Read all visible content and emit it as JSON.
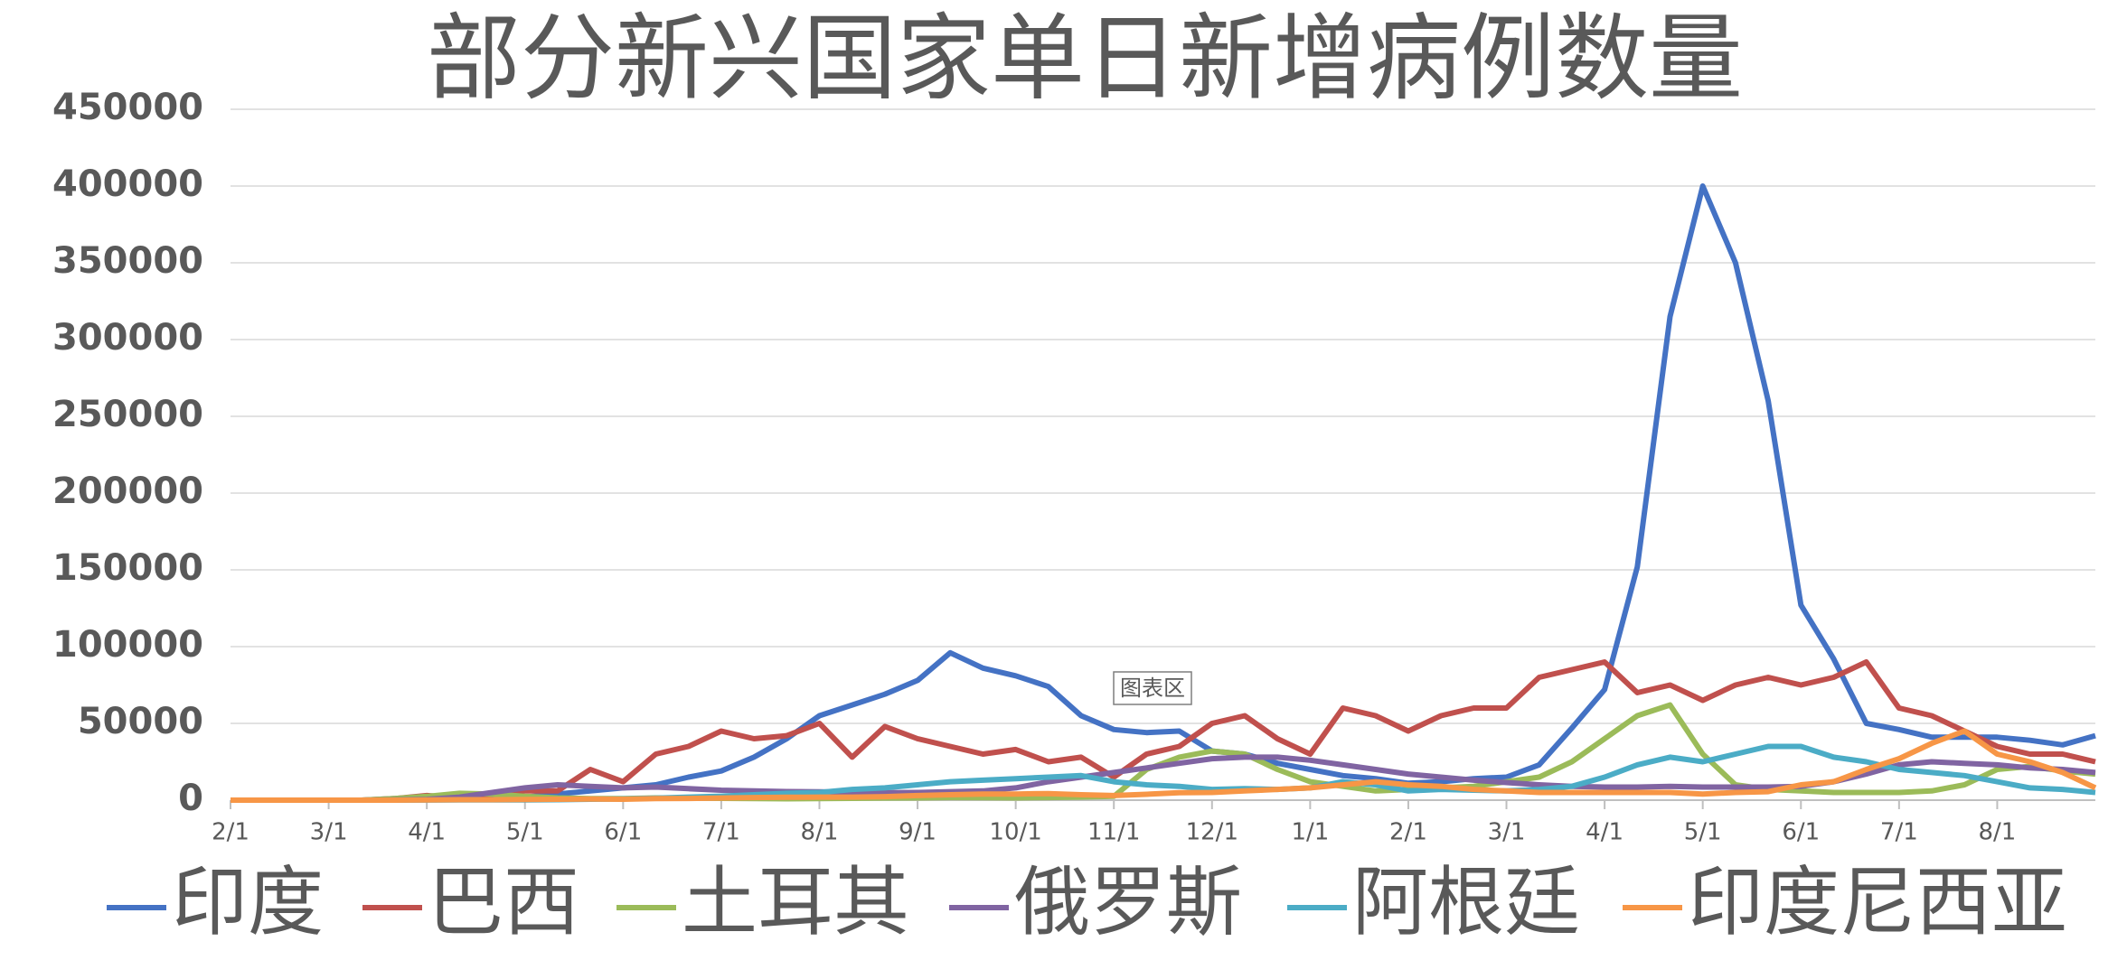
{
  "chart_data": {
    "type": "line",
    "title": "部分新兴国家单日新增病例数量",
    "tooltip": "图表区",
    "categories": [
      "2/1",
      null,
      null,
      "3/1",
      null,
      null,
      "4/1",
      null,
      null,
      "5/1",
      null,
      null,
      "6/1",
      null,
      null,
      "7/1",
      null,
      null,
      "8/1",
      null,
      null,
      "9/1",
      null,
      null,
      "10/1",
      null,
      null,
      "11/1",
      null,
      null,
      "12/1",
      null,
      null,
      "1/1",
      null,
      null,
      "2/1",
      null,
      null,
      "3/1",
      null,
      null,
      "4/1",
      null,
      null,
      "5/1",
      null,
      null,
      "6/1",
      null,
      null,
      "7/1",
      null,
      null,
      "8/1",
      null,
      null,
      null
    ],
    "series": [
      {
        "name": "印度",
        "color": "#4472c4",
        "values": [
          0,
          0,
          0,
          0,
          0,
          100,
          1000,
          1500,
          2000,
          2000,
          4000,
          6000,
          8000,
          10000,
          15000,
          19000,
          28000,
          40000,
          55000,
          62000,
          69000,
          78000,
          96000,
          86000,
          81000,
          74000,
          55000,
          46000,
          44000,
          45000,
          32000,
          30000,
          24000,
          20000,
          16000,
          14000,
          11000,
          12000,
          14000,
          15000,
          23000,
          47000,
          72000,
          152000,
          315000,
          400000,
          350000,
          260000,
          127000,
          92000,
          50000,
          46000,
          41000,
          41000,
          41000,
          39000,
          36000,
          42000
        ]
      },
      {
        "name": "巴西",
        "color": "#c0504d",
        "values": [
          0,
          0,
          0,
          0,
          0,
          1000,
          3000,
          1500,
          4000,
          6000,
          6000,
          20000,
          12000,
          30000,
          35000,
          45000,
          40000,
          42000,
          50000,
          28000,
          48000,
          40000,
          35000,
          30000,
          33000,
          25000,
          28000,
          15000,
          30000,
          35000,
          50000,
          55000,
          40000,
          30000,
          60000,
          55000,
          45000,
          55000,
          60000,
          60000,
          80000,
          85000,
          90000,
          70000,
          75000,
          65000,
          75000,
          80000,
          75000,
          80000,
          90000,
          60000,
          55000,
          45000,
          35000,
          30000,
          30000,
          25000
        ]
      },
      {
        "name": "土耳其",
        "color": "#9bbb59",
        "values": [
          0,
          0,
          0,
          0,
          0,
          1000,
          2500,
          4500,
          4000,
          2500,
          1500,
          1000,
          1000,
          1500,
          1400,
          1200,
          1000,
          900,
          1000,
          1200,
          1400,
          1500,
          1700,
          1600,
          1500,
          1700,
          2000,
          2500,
          20000,
          28000,
          32000,
          30000,
          20000,
          12000,
          9000,
          6000,
          7000,
          8000,
          9000,
          12000,
          15000,
          25000,
          40000,
          55000,
          62000,
          30000,
          10000,
          7000,
          6000,
          5000,
          5000,
          5000,
          6000,
          10000,
          20000,
          22000,
          19000,
          17000
        ]
      },
      {
        "name": "俄罗斯",
        "color": "#8064a2",
        "values": [
          0,
          0,
          0,
          0,
          0,
          100,
          500,
          2000,
          5000,
          8000,
          10000,
          9000,
          8000,
          8500,
          7500,
          6500,
          6000,
          5600,
          5400,
          5100,
          4900,
          5000,
          5500,
          6000,
          8000,
          12000,
          15000,
          18000,
          21000,
          24000,
          27000,
          28000,
          28000,
          26000,
          23000,
          20000,
          17000,
          15000,
          13000,
          11500,
          10000,
          9000,
          8500,
          8500,
          9000,
          8500,
          8500,
          8500,
          9000,
          12000,
          17000,
          23000,
          25000,
          24000,
          23000,
          21000,
          20000,
          18000
        ]
      },
      {
        "name": "阿根廷",
        "color": "#4bacc6",
        "values": [
          0,
          0,
          0,
          0,
          0,
          0,
          50,
          100,
          100,
          200,
          300,
          600,
          800,
          1300,
          2000,
          2600,
          3500,
          4500,
          5000,
          7000,
          8000,
          10000,
          12000,
          13000,
          14000,
          15000,
          16000,
          12000,
          10000,
          9000,
          7000,
          7500,
          7000,
          8000,
          12000,
          10000,
          6000,
          7000,
          6500,
          6000,
          7000,
          9000,
          15000,
          23000,
          28000,
          25000,
          30000,
          35000,
          35000,
          28000,
          25000,
          20000,
          18000,
          16000,
          12000,
          8000,
          7000,
          5000
        ]
      },
      {
        "name": "印度尼西亚",
        "color": "#f79646",
        "values": [
          0,
          0,
          0,
          0,
          0,
          0,
          100,
          300,
          300,
          400,
          600,
          700,
          600,
          1000,
          1100,
          1400,
          1700,
          1900,
          2000,
          2000,
          2300,
          3000,
          3500,
          4000,
          4000,
          4300,
          3500,
          3000,
          3800,
          4800,
          5000,
          6000,
          7000,
          8000,
          10000,
          12000,
          10000,
          9000,
          7000,
          6000,
          5000,
          5000,
          5000,
          5000,
          5000,
          4000,
          5000,
          5500,
          10000,
          12000,
          20000,
          27000,
          37000,
          45000,
          30000,
          25000,
          18000,
          8000
        ]
      }
    ],
    "ylim": [
      0,
      450000
    ],
    "yticks": [
      0,
      50000,
      100000,
      150000,
      200000,
      250000,
      300000,
      350000,
      400000,
      450000
    ],
    "grid": true
  }
}
